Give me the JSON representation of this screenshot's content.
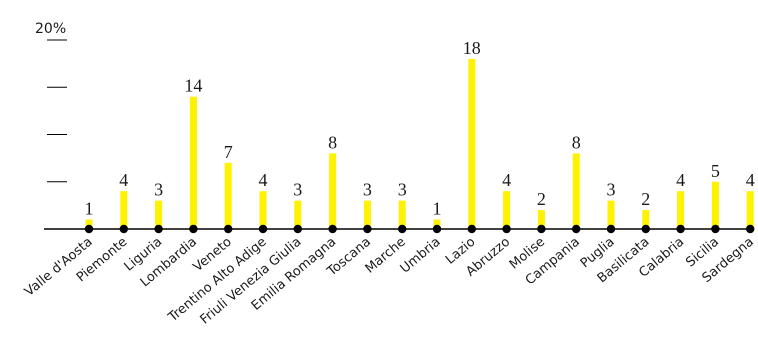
{
  "chart_data": {
    "type": "bar",
    "categories": [
      "Valle d'Aosta",
      "Piemonte",
      "Liguria",
      "Lombardia",
      "Veneto",
      "Trentino Alto Adige",
      "Friuli Venezia Giulia",
      "Emilia Romagna",
      "Toscana",
      "Marche",
      "Umbria",
      "Lazio",
      "Abruzzo",
      "Molise",
      "Campania",
      "Puglia",
      "Basilicata",
      "Calabria",
      "Sicilia",
      "Sardegna"
    ],
    "values": [
      1,
      4,
      3,
      14,
      7,
      4,
      3,
      8,
      3,
      3,
      1,
      18,
      4,
      2,
      8,
      3,
      2,
      4,
      5,
      4
    ],
    "value_labels": [
      "1",
      "4",
      "3",
      "14",
      "7",
      "4",
      "3",
      "8",
      "3",
      "3",
      "1",
      "18",
      "4",
      "2",
      "8",
      "3",
      "2",
      "4",
      "5",
      "4"
    ],
    "ylim": [
      0,
      20
    ],
    "yticks": [
      0,
      5,
      10,
      15,
      20
    ],
    "ytick_labels": [
      "",
      "",
      "",
      "",
      "20%"
    ],
    "grid": false,
    "bar_color": "#fff200",
    "axis_color": "#000000"
  }
}
